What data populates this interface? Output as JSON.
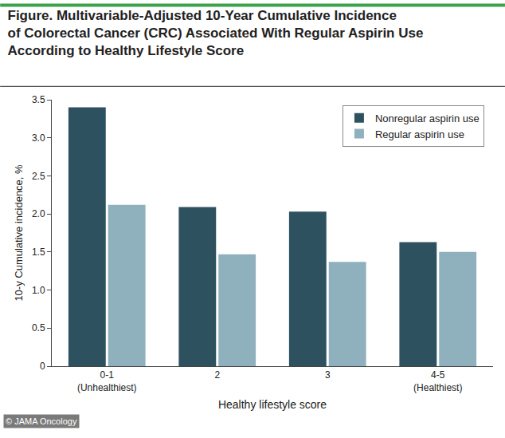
{
  "chart_data": {
    "type": "bar",
    "title": "Figure. Multivariable-Adjusted 10-Year Cumulative Incidence\nof Colorectal Cancer (CRC) Associated With Regular Aspirin Use\nAccording to Healthy Lifestyle Score",
    "x_label": "Healthy lifestyle score",
    "y_label": "10-y Cumulative incidence, %",
    "categories": [
      "0-1\n(Unhealthiest)",
      "2",
      "3",
      "4-5\n(Healthiest)"
    ],
    "series": [
      {
        "name": "Nonregular aspirin use",
        "color": "#2e5160",
        "values": [
          3.4,
          2.09,
          2.03,
          1.63
        ]
      },
      {
        "name": "Regular aspirin use",
        "color": "#8fb0bd",
        "values": [
          2.12,
          1.47,
          1.37,
          1.5
        ]
      }
    ],
    "ylim": [
      0,
      3.5
    ],
    "yticks": [
      0,
      0.5,
      {
        "value": 1,
        "label": "1.0"
      },
      1.5,
      {
        "value": 2,
        "label": "2.0"
      },
      2.5,
      {
        "value": 3,
        "label": "3.0"
      },
      3.5
    ],
    "grid": false,
    "legend": "upper right",
    "annotations": [
      {
        "text": "© JAMA Oncology"
      }
    ]
  }
}
